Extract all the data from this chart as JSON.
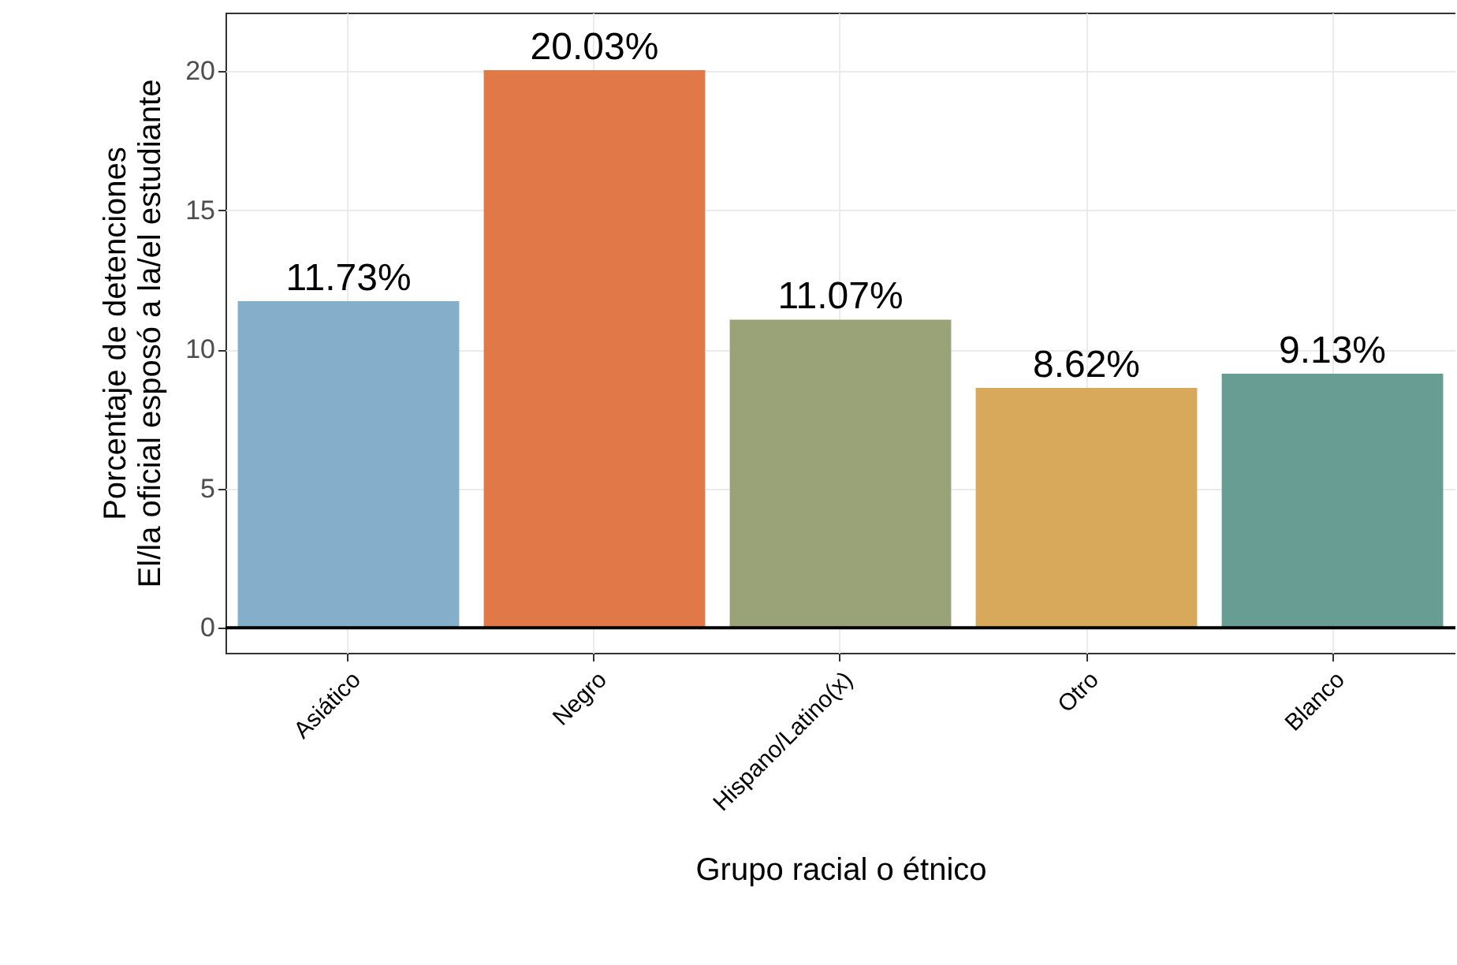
{
  "chart_data": {
    "type": "bar",
    "xlabel": "Grupo racial o étnico",
    "ylabel": "Porcentaje de detenciones\nEl/la oficial esposó a la/el estudiante",
    "categories": [
      "Asiático",
      "Negro",
      "Hispano/Latino(x)",
      "Otro",
      "Blanco"
    ],
    "values": [
      11.73,
      20.03,
      11.07,
      8.62,
      9.13
    ],
    "value_labels": [
      "11.73%",
      "20.03%",
      "11.07%",
      "8.62%",
      "9.13%"
    ],
    "colors": [
      "#85aecb",
      "#e07848",
      "#9aa378",
      "#d8a95a",
      "#689d94"
    ],
    "ylim": [
      -0.9,
      22.1
    ],
    "yticks": [
      0,
      5,
      10,
      15,
      20
    ],
    "ref_lines": [
      {
        "axis": "y",
        "value": 0,
        "color": "#000000"
      }
    ],
    "grid": true
  }
}
